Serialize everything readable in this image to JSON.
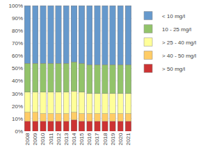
{
  "chart_data": {
    "type": "bar",
    "stacked": true,
    "categories": [
      "2008",
      "2009",
      "2010",
      "2011",
      "2012",
      "2013",
      "2014",
      "2015",
      "2016",
      "2017",
      "2018",
      "2019",
      "2020",
      "2021"
    ],
    "series": [
      {
        "name": "> 50 mg/l",
        "color": "#cc3333",
        "values": [
          8,
          8,
          8,
          8,
          8,
          8,
          9,
          8,
          8,
          8,
          8,
          8,
          8,
          8
        ]
      },
      {
        "name": "> 40 - 50 mg/l",
        "color": "#ffcc66",
        "values": [
          7,
          7,
          6,
          6,
          6,
          6,
          6,
          6,
          6,
          6,
          6,
          6,
          6,
          6
        ]
      },
      {
        "name": "> 25 - 40 mg/l",
        "color": "#ffff99",
        "values": [
          16,
          16,
          17,
          17,
          17,
          17,
          17,
          17,
          16,
          16,
          16,
          16,
          16,
          16
        ]
      },
      {
        "name": "10 - 25 mg/l",
        "color": "#92c36a",
        "values": [
          23,
          23,
          23,
          23,
          23,
          23,
          23,
          23,
          23,
          23,
          23,
          23,
          23,
          23
        ]
      },
      {
        "name": "< 10 mg/l",
        "color": "#6699cc",
        "values": [
          46,
          46,
          46,
          46,
          46,
          46,
          45,
          46,
          47,
          47,
          47,
          47,
          47,
          47
        ]
      }
    ],
    "ylim": [
      0,
      100
    ],
    "yticks": [
      {
        "value": 0,
        "label": "0%"
      },
      {
        "value": 10,
        "label": "10%"
      },
      {
        "value": 20,
        "label": "20%"
      },
      {
        "value": 30,
        "label": "30%"
      },
      {
        "value": 40,
        "label": "40%"
      },
      {
        "value": 50,
        "label": "50%"
      },
      {
        "value": 60,
        "label": "60%"
      },
      {
        "value": 70,
        "label": "70%"
      },
      {
        "value": 80,
        "label": "80%"
      },
      {
        "value": 90,
        "label": "90%"
      },
      {
        "value": 100,
        "label": "100%"
      }
    ],
    "grid": true,
    "legend": "right"
  }
}
